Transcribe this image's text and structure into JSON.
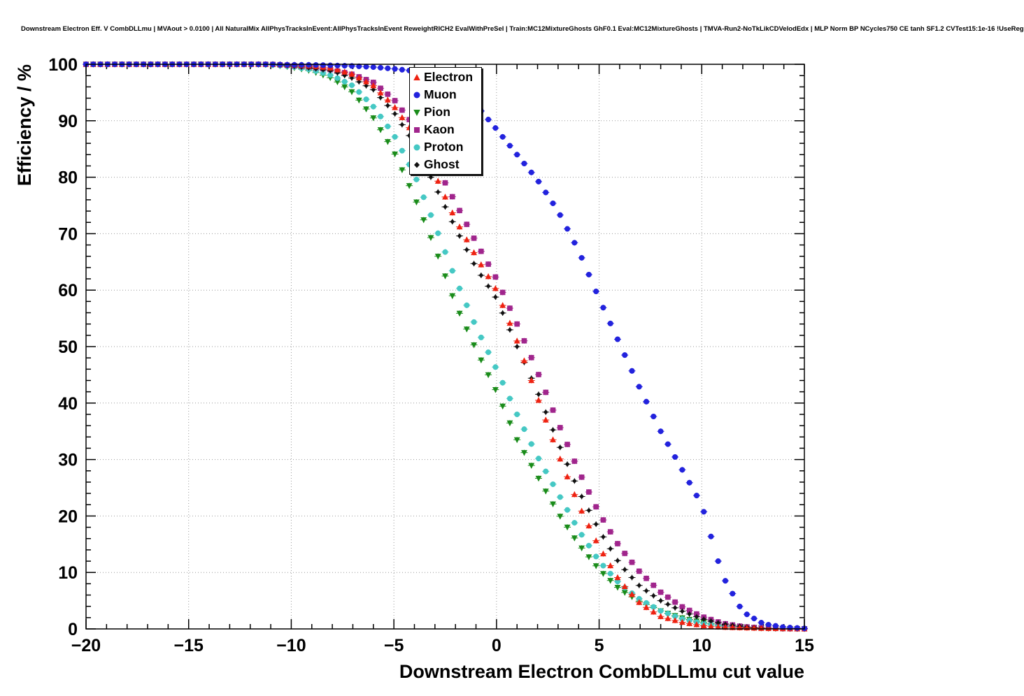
{
  "header": {
    "title": "Downstream Electron Eff. V CombDLLmu | MVAout > 0.0100 | All NaturalMix AllPhysTracksInEvent:AllPhysTracksInEvent ReweightRICH2 EvalWithPreSel | Train:MC12MixtureGhosts GhF0.1 Eval:MC12MixtureGhosts | TMVA-Run2-NoTkLikCDVelodEdx | MLP Norm BP NCycles750 CE tanh SF1.2 CVTest15:1e-16 !UseReg"
  },
  "chart_data": {
    "type": "scatter",
    "title": "Downstream Electron Eff. V CombDLLmu",
    "xlabel": "Downstream Electron CombDLLmu cut value",
    "ylabel": "Efficiency / %",
    "xlim": [
      -20,
      15
    ],
    "ylim": [
      0,
      100
    ],
    "x_ticks": [
      -20,
      -15,
      -10,
      -5,
      0,
      5,
      10,
      15
    ],
    "y_ticks": [
      0,
      10,
      20,
      30,
      40,
      50,
      60,
      70,
      80,
      90,
      100
    ],
    "x_minor_step": 1,
    "y_minor_step": 2,
    "grid": "dotted",
    "grid_color": "#999999",
    "frame_color": "#000000",
    "legend_position": "top-center",
    "marker_step": 0.35,
    "x": [
      -20,
      -19,
      -18,
      -17,
      -16,
      -15,
      -14,
      -13,
      -12,
      -11,
      -10,
      -9,
      -8,
      -7,
      -6,
      -5,
      -4,
      -3,
      -2,
      -1,
      0,
      1,
      2,
      3,
      4,
      5,
      6,
      7,
      8,
      9,
      10,
      11,
      12,
      13,
      14,
      15
    ],
    "series": [
      {
        "name": "Pion",
        "marker": "triangle-down",
        "color": "#1a8c1a",
        "values": [
          100,
          100,
          100,
          100,
          100,
          100,
          100,
          100,
          100,
          99.9,
          99.5,
          98.8,
          97.5,
          95,
          90.5,
          84.5,
          76.5,
          67.5,
          57.5,
          49.5,
          42,
          33.5,
          27,
          20.5,
          15,
          10.5,
          7,
          4.8,
          3.2,
          2,
          1.2,
          0.6,
          0.3,
          0.12,
          0.05,
          0.02
        ]
      },
      {
        "name": "Proton",
        "marker": "circle",
        "color": "#45c8c4",
        "values": [
          100,
          100,
          100,
          100,
          100,
          100,
          100,
          100,
          100,
          99.9,
          99.6,
          99,
          98,
          96.2,
          92.5,
          87.5,
          80.5,
          71.5,
          62,
          53.5,
          46,
          38,
          30.5,
          24,
          17.5,
          12,
          8,
          5.2,
          3.2,
          1.8,
          1,
          0.5,
          0.25,
          0.1,
          0.05,
          0.02
        ]
      },
      {
        "name": "Kaon",
        "marker": "square",
        "color": "#a0258c",
        "values": [
          100,
          100,
          100,
          100,
          100,
          100,
          100,
          100,
          100,
          100,
          99.8,
          99.5,
          99,
          98.2,
          96.8,
          93.8,
          89,
          82.5,
          75.5,
          68.5,
          62,
          54,
          45.5,
          36.5,
          28,
          20.5,
          14.5,
          10,
          6.5,
          4,
          2.2,
          1,
          0.4,
          0.15,
          0.05,
          0.02
        ]
      },
      {
        "name": "Ghost",
        "marker": "diamond",
        "color": "#111111",
        "values": [
          100,
          100,
          100,
          100,
          100,
          100,
          100,
          100,
          100,
          100,
          99.7,
          99.3,
          98.8,
          97.5,
          95.5,
          91.5,
          86,
          78.5,
          71,
          64,
          58.5,
          50,
          42,
          33,
          24.5,
          17.5,
          11.5,
          7.5,
          5,
          3.2,
          1.8,
          0.9,
          0.4,
          0.15,
          0.05,
          0.02
        ]
      },
      {
        "name": "Electron",
        "marker": "triangle-up",
        "color": "#ee2211",
        "values": [
          100,
          100,
          100,
          100,
          100,
          100,
          100,
          100,
          100,
          100,
          99.9,
          99.7,
          99.3,
          98.2,
          96.2,
          92.6,
          87.5,
          80.5,
          72.5,
          66,
          60,
          51,
          41,
          31,
          22,
          14.5,
          8.5,
          4.5,
          2.2,
          1.2,
          0.6,
          0.3,
          0.2,
          0.1,
          0.05,
          0.02
        ]
      },
      {
        "name": "Muon",
        "marker": "circle",
        "color": "#2222dd",
        "values": [
          100,
          100,
          100,
          100,
          100,
          100,
          100,
          100,
          100,
          100,
          99.9,
          99.9,
          99.8,
          99.7,
          99.5,
          99.2,
          98.8,
          98,
          96.3,
          92.8,
          88.5,
          84,
          79.5,
          74,
          67,
          58.5,
          50.5,
          42.5,
          35,
          28.5,
          22,
          9.5,
          3,
          0.9,
          0.3,
          0.1
        ]
      }
    ],
    "legend_order": [
      "Electron",
      "Muon",
      "Pion",
      "Kaon",
      "Proton",
      "Ghost"
    ]
  }
}
